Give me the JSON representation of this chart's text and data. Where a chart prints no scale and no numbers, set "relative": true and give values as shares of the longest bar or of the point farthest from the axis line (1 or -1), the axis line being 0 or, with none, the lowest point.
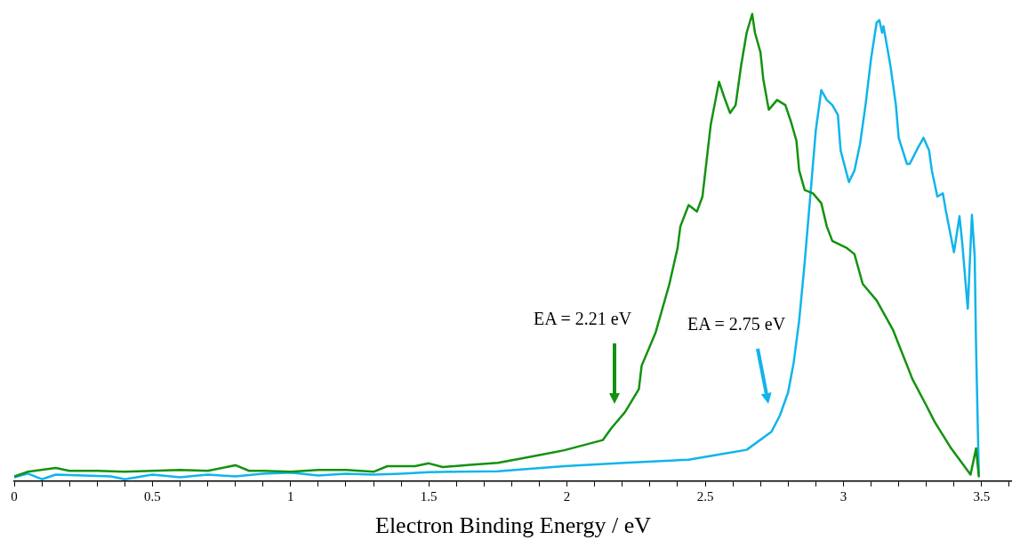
{
  "chart_data": {
    "type": "line",
    "relative": true,
    "xlabel": "Electron Binding Energy / eV",
    "xlim": [
      0,
      3.61
    ],
    "xticks": [
      0,
      {
        "value": 0.1,
        "label": null
      },
      {
        "value": 0.2,
        "label": null
      },
      {
        "value": 0.3,
        "label": null
      },
      {
        "value": 0.4,
        "label": null
      },
      0.5,
      {
        "value": 0.6,
        "label": null
      },
      {
        "value": 0.7,
        "label": null
      },
      {
        "value": 0.8,
        "label": null
      },
      {
        "value": 0.9,
        "label": null
      },
      1,
      {
        "value": 1.1,
        "label": null
      },
      {
        "value": 1.2,
        "label": null
      },
      {
        "value": 1.3,
        "label": null
      },
      {
        "value": 1.4,
        "label": null
      },
      1.5,
      {
        "value": 1.6,
        "label": null
      },
      {
        "value": 1.7,
        "label": null
      },
      {
        "value": 1.8,
        "label": null
      },
      {
        "value": 1.9,
        "label": null
      },
      2,
      {
        "value": 2.1,
        "label": null
      },
      {
        "value": 2.2,
        "label": null
      },
      {
        "value": 2.3,
        "label": null
      },
      {
        "value": 2.4,
        "label": null
      },
      2.5,
      {
        "value": 2.6,
        "label": null
      },
      {
        "value": 2.7,
        "label": null
      },
      {
        "value": 2.8,
        "label": null
      },
      {
        "value": 2.9,
        "label": null
      },
      3,
      {
        "value": 3.1,
        "label": null
      },
      {
        "value": 3.2,
        "label": null
      },
      {
        "value": 3.3,
        "label": null
      },
      {
        "value": 3.4,
        "label": null
      },
      3.5,
      {
        "value": 3.6,
        "label": null
      }
    ],
    "grid": false,
    "legend": false,
    "marker": "none",
    "line_style": "solid",
    "series": [
      {
        "color": "#13920f",
        "x": [
          0,
          0.05,
          0.15,
          0.2,
          0.3,
          0.4,
          0.5,
          0.6,
          0.7,
          0.8,
          0.85,
          0.9,
          1.0,
          1.1,
          1.2,
          1.3,
          1.35,
          1.45,
          1.5,
          1.55,
          1.65,
          1.75,
          1.85,
          1.99,
          2.13,
          2.16,
          2.21,
          2.26,
          2.27,
          2.32,
          2.37,
          2.4,
          2.41,
          2.44,
          2.47,
          2.49,
          2.52,
          2.55,
          2.57,
          2.59,
          2.61,
          2.63,
          2.65,
          2.67,
          2.68,
          2.7,
          2.71,
          2.73,
          2.76,
          2.79,
          2.81,
          2.83,
          2.84,
          2.86,
          2.89,
          2.92,
          2.94,
          2.96,
          3.01,
          3.04,
          3.07,
          3.12,
          3.18,
          3.25,
          3.3,
          3.33,
          3.39,
          3.46,
          3.48,
          3.49
        ],
        "values": [
          0.01,
          0.02,
          0.028,
          0.022,
          0.022,
          0.02,
          0.022,
          0.024,
          0.022,
          0.034,
          0.022,
          0.022,
          0.02,
          0.024,
          0.024,
          0.02,
          0.032,
          0.032,
          0.038,
          0.03,
          0.035,
          0.039,
          0.05,
          0.066,
          0.088,
          0.113,
          0.148,
          0.197,
          0.247,
          0.317,
          0.421,
          0.499,
          0.545,
          0.591,
          0.577,
          0.609,
          0.763,
          0.855,
          0.82,
          0.788,
          0.805,
          0.89,
          0.96,
          1.0,
          0.96,
          0.918,
          0.861,
          0.795,
          0.816,
          0.805,
          0.77,
          0.729,
          0.665,
          0.623,
          0.616,
          0.595,
          0.545,
          0.514,
          0.5,
          0.486,
          0.422,
          0.387,
          0.323,
          0.218,
          0.162,
          0.127,
          0.07,
          0.014,
          0.07,
          0.01
        ]
      },
      {
        "color": "#10b4ec",
        "x": [
          0,
          0.05,
          0.1,
          0.15,
          0.25,
          0.35,
          0.4,
          0.5,
          0.6,
          0.7,
          0.8,
          0.9,
          1.0,
          1.1,
          1.2,
          1.3,
          1.4,
          1.5,
          1.6,
          1.75,
          1.99,
          2.21,
          2.44,
          2.65,
          2.74,
          2.77,
          2.8,
          2.82,
          2.84,
          2.86,
          2.88,
          2.9,
          2.92,
          2.94,
          2.96,
          2.98,
          2.99,
          3.02,
          3.04,
          3.06,
          3.08,
          3.1,
          3.12,
          3.13,
          3.14,
          3.145,
          3.17,
          3.19,
          3.2,
          3.23,
          3.24,
          3.27,
          3.29,
          3.31,
          3.32,
          3.34,
          3.36,
          3.37,
          3.4,
          3.42,
          3.43,
          3.45,
          3.465,
          3.475,
          3.48,
          3.49
        ],
        "values": [
          0.008,
          0.016,
          0.004,
          0.014,
          0.012,
          0.01,
          0.004,
          0.014,
          0.008,
          0.014,
          0.01,
          0.016,
          0.018,
          0.012,
          0.016,
          0.014,
          0.016,
          0.019,
          0.02,
          0.021,
          0.032,
          0.039,
          0.046,
          0.067,
          0.106,
          0.14,
          0.19,
          0.253,
          0.344,
          0.469,
          0.609,
          0.75,
          0.837,
          0.816,
          0.805,
          0.784,
          0.708,
          0.64,
          0.665,
          0.721,
          0.805,
          0.904,
          0.981,
          0.987,
          0.96,
          0.974,
          0.89,
          0.805,
          0.735,
          0.679,
          0.679,
          0.714,
          0.735,
          0.708,
          0.665,
          0.609,
          0.616,
          0.581,
          0.49,
          0.567,
          0.51,
          0.369,
          0.57,
          0.482,
          0.288,
          0.014
        ]
      }
    ],
    "annotations": [
      "EA = 2.21 eV",
      "EA = 2.75 eV"
    ]
  }
}
